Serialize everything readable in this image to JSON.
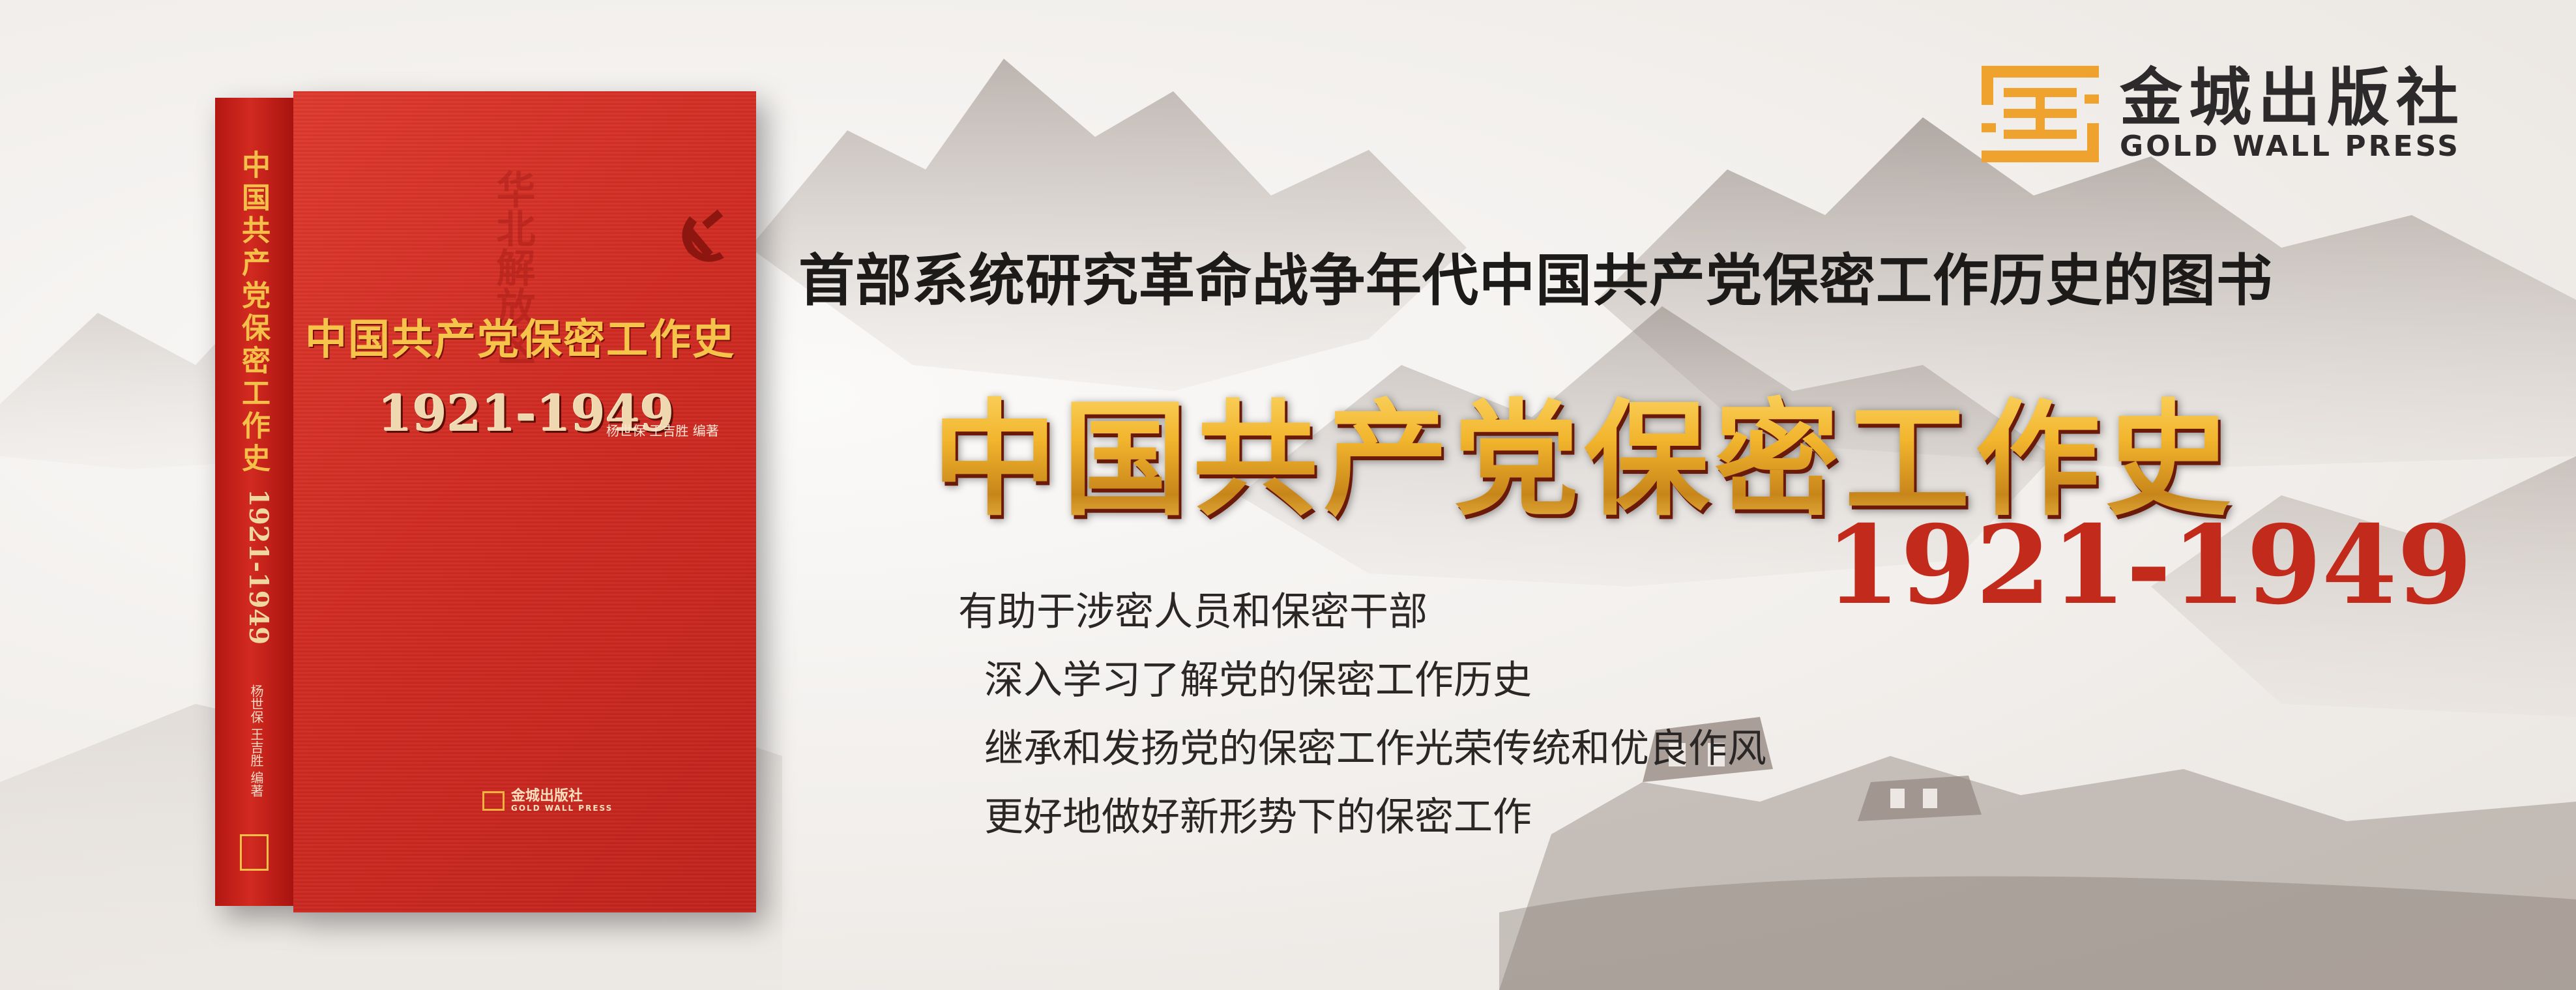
{
  "banner": {
    "headline": "首部系统研究革命战争年代中国共产党保密工作历史的图书",
    "main_title": "中国共产党保密工作史",
    "main_years": "1921-1949",
    "points": [
      "有助于涉密人员和保密干部",
      "深入学习了解党的保密工作历史",
      "继承和发扬党的保密工作光荣传统和优良作风",
      "更好地做好新形势下的保密工作"
    ]
  },
  "publisher": {
    "name_cn": "金城出版社",
    "name_en": "GOLD WALL PRESS"
  },
  "book": {
    "spine_title": "中国共产党保密工作史",
    "spine_years": "1921-1949",
    "spine_authors": "杨世保 王吉胜 编著",
    "cover_title": "中国共产党保密工作史",
    "cover_years": "1921-1949",
    "cover_authors": "杨世保 王吉胜 编著",
    "cover_watermark": "华北解放区",
    "cover_publisher_cn": "金城出版社",
    "cover_publisher_en": "GOLD WALL PRESS"
  },
  "colors": {
    "book_red": "#cf2b22",
    "gold": "#f0bb38",
    "year_red": "#c22a1c",
    "logo_orange": "#f0a22e",
    "text_dark": "#1d1a1a"
  },
  "icons": {
    "logo": "gold-wall-press-logo-icon",
    "emblem": "hammer-sickle-icon"
  }
}
